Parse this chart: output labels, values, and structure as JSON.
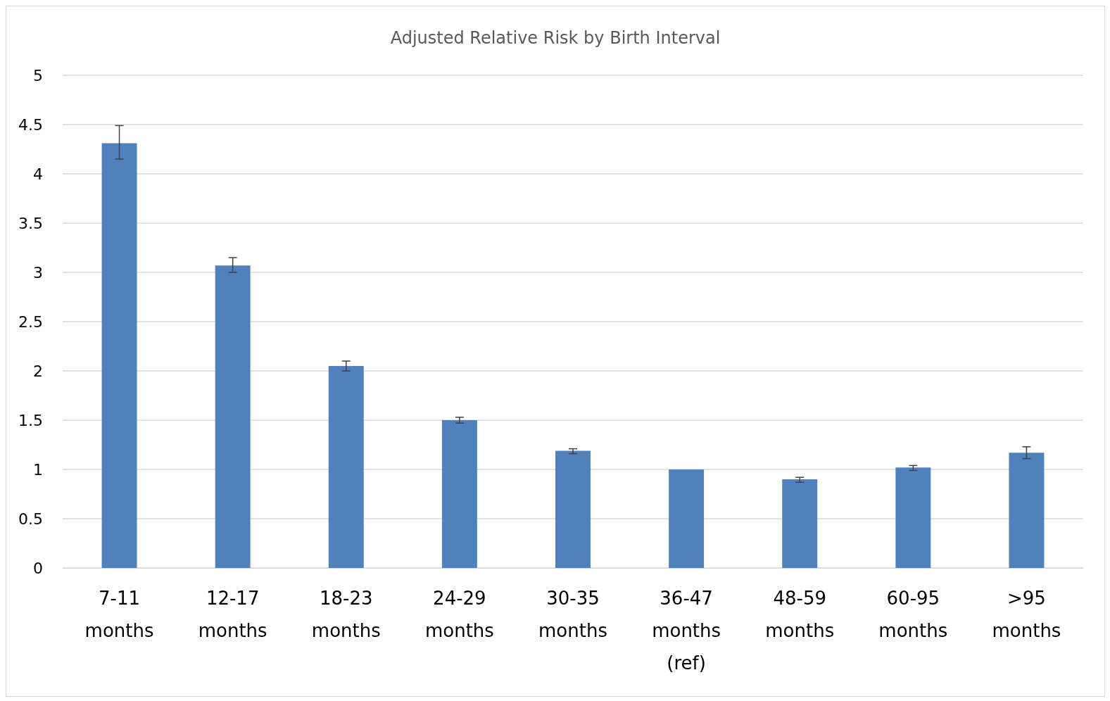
{
  "chart_data": {
    "type": "bar",
    "title": "Adjusted Relative Risk by Birth Interval",
    "categories": [
      "7-11\nmonths",
      "12-17\nmonths",
      "18-23\nmonths",
      "24-29\nmonths",
      "30-35\nmonths",
      "36-47\nmonths\n(ref)",
      "48-59\nmonths",
      "60-95\nmonths",
      ">95\nmonths"
    ],
    "values": [
      4.31,
      3.07,
      2.05,
      1.5,
      1.19,
      1.0,
      0.9,
      1.02,
      1.17
    ],
    "errors": [
      [
        4.15,
        4.49
      ],
      [
        3.0,
        3.15
      ],
      [
        2.0,
        2.1
      ],
      [
        1.47,
        1.53
      ],
      [
        1.16,
        1.21
      ],
      null,
      [
        0.87,
        0.92
      ],
      [
        0.99,
        1.04
      ],
      [
        1.11,
        1.23
      ]
    ],
    "color": "#4f81bd",
    "ylim": [
      0,
      5
    ],
    "yticks": [
      0,
      0.5,
      1,
      1.5,
      2,
      2.5,
      3,
      3.5,
      4,
      4.5,
      5
    ],
    "grid": "y"
  }
}
